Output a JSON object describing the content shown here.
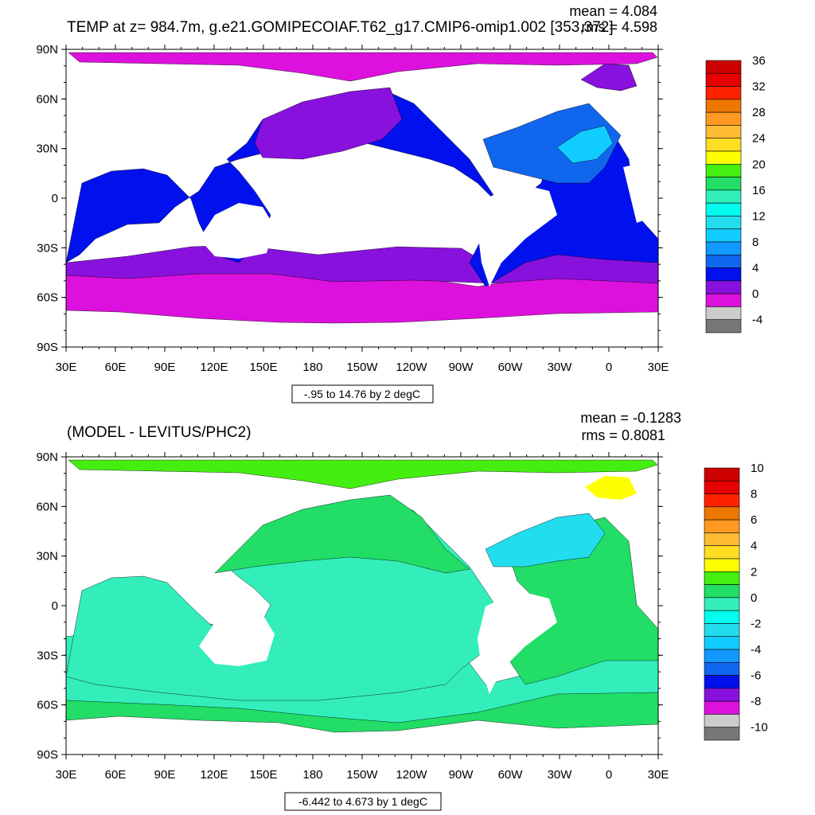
{
  "panels": [
    {
      "title": "TEMP at z= 984.7m, g.e21.GOMIPECOIAF.T62_g17.CMIP6-omip1.002 [353,372]",
      "stats": [
        "mean = 4.084",
        "rms = 4.598"
      ],
      "info": "-.95 to 14.76 by 2 degC",
      "lat_ticks": [
        "90N",
        "60N",
        "30N",
        "0",
        "30S",
        "60S",
        "90S"
      ],
      "lon_ticks": [
        "30E",
        "60E",
        "90E",
        "120E",
        "150E",
        "180",
        "150W",
        "120W",
        "90W",
        "60W",
        "30W",
        "0",
        "30E"
      ],
      "colorbar": {
        "labels": [
          "36",
          "32",
          "28",
          "24",
          "20",
          "16",
          "12",
          "8",
          "4",
          "0",
          "-4"
        ],
        "colors": [
          "#cc0000",
          "#e60000",
          "#ff2200",
          "#ee7700",
          "#ff9922",
          "#ffbb33",
          "#ffdd22",
          "#ffff00",
          "#44ee11",
          "#22dd66",
          "#33eebb",
          "#00ffee",
          "#22ddee",
          "#11ccff",
          "#1199ff",
          "#1166ee",
          "#0011ee",
          "#8811dd",
          "#dd11dd",
          "#cccccc",
          "#777777"
        ]
      },
      "fields": {
        "polar": "#dd11dd",
        "southern": "#dd11dd",
        "mid": "#8811dd",
        "main": "#0011ee",
        "atl": "#1166ee",
        "atl2": "#11ccff"
      }
    },
    {
      "title": "(MODEL - LEVITUS/PHC2)",
      "stats": [
        "mean = -0.1283",
        "rms = 0.8081"
      ],
      "info": "-6.442 to 4.673 by 1 degC",
      "lat_ticks": [
        "90N",
        "60N",
        "30N",
        "0",
        "30S",
        "60S",
        "90S"
      ],
      "lon_ticks": [
        "30E",
        "60E",
        "90E",
        "120E",
        "150E",
        "180",
        "150W",
        "120W",
        "90W",
        "60W",
        "30W",
        "0",
        "30E"
      ],
      "colorbar": {
        "labels": [
          "10",
          "8",
          "6",
          "4",
          "2",
          "0",
          "-2",
          "-4",
          "-6",
          "-8",
          "-10"
        ],
        "colors": [
          "#cc0000",
          "#e60000",
          "#ff2200",
          "#ee7700",
          "#ff9922",
          "#ffbb33",
          "#ffdd22",
          "#ffff00",
          "#44ee11",
          "#22dd66",
          "#33eebb",
          "#00ffee",
          "#22ddee",
          "#11ccff",
          "#1199ff",
          "#1166ee",
          "#0011ee",
          "#8811dd",
          "#dd11dd",
          "#cccccc",
          "#777777"
        ]
      },
      "fields": {
        "polar": "#44ee11",
        "southern": "#33eebb",
        "mid": "#22dd66",
        "main": "#33eebb",
        "atl": "#22dd66",
        "atl2": "#22ddee"
      }
    }
  ]
}
